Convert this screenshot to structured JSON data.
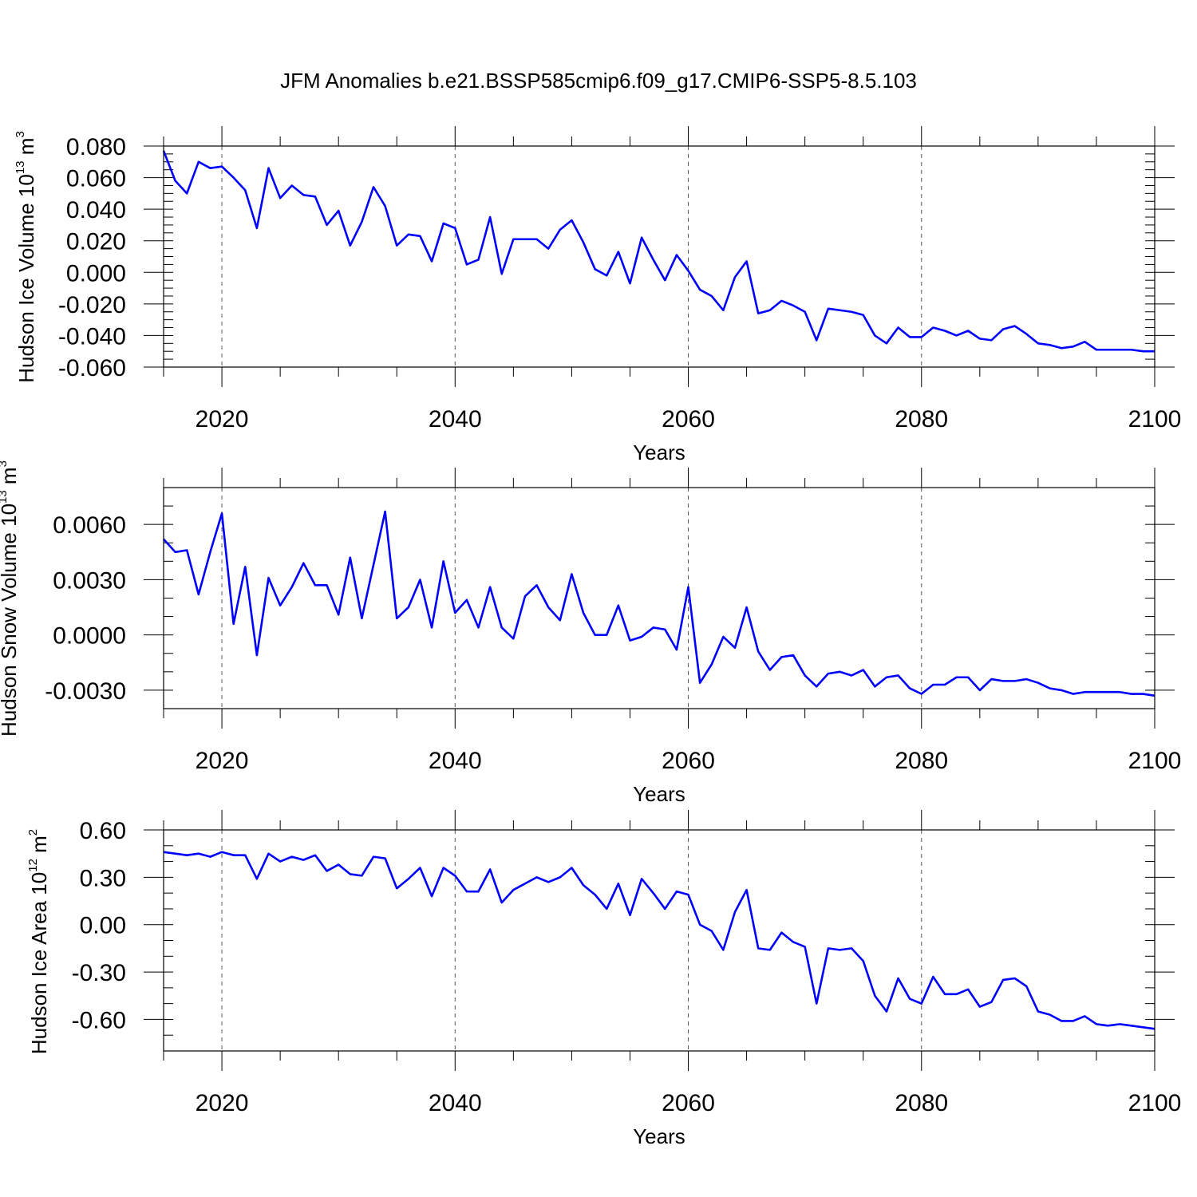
{
  "figure": {
    "title": "JFM Anomalies b.e21.BSSP585cmip6.f09_g17.CMIP6-SSP5-8.5.103",
    "line_color": "#0000ff",
    "axis_color": "#000000"
  },
  "chart_data": [
    {
      "type": "line",
      "title": "JFM Anomalies b.e21.BSSP585cmip6.f09_g17.CMIP6-SSP5-8.5.103",
      "xlabel": "Years",
      "ylabel_main": "Hudson Ice Volume 10",
      "ylabel_exp": "13",
      "ylabel_unit": " m",
      "ylabel_unit_exp": "3",
      "xlim": [
        2015,
        2100
      ],
      "ylim": [
        -0.06,
        0.08
      ],
      "x_ticks": [
        2020,
        2040,
        2060,
        2080,
        2100
      ],
      "x_tick_labels": [
        "2020",
        "2040",
        "2060",
        "2080",
        "2100"
      ],
      "y_ticks": [
        -0.06,
        -0.04,
        -0.02,
        0.0,
        0.02,
        0.04,
        0.06,
        0.08
      ],
      "y_tick_labels": [
        "-0.060",
        "-0.040",
        "-0.020",
        "0.000",
        "0.020",
        "0.040",
        "0.060",
        "0.080"
      ],
      "y_minor_step": 0.005,
      "grid": "vertical dashed at major x ticks",
      "series": [
        {
          "name": "Hudson Ice Volume",
          "x": [
            2015,
            2016,
            2017,
            2018,
            2019,
            2020,
            2021,
            2022,
            2023,
            2024,
            2025,
            2026,
            2027,
            2028,
            2029,
            2030,
            2031,
            2032,
            2033,
            2034,
            2035,
            2036,
            2037,
            2038,
            2039,
            2040,
            2041,
            2042,
            2043,
            2044,
            2045,
            2046,
            2047,
            2048,
            2049,
            2050,
            2051,
            2052,
            2053,
            2054,
            2055,
            2056,
            2057,
            2058,
            2059,
            2060,
            2061,
            2062,
            2063,
            2064,
            2065,
            2066,
            2067,
            2068,
            2069,
            2070,
            2071,
            2072,
            2073,
            2074,
            2075,
            2076,
            2077,
            2078,
            2079,
            2080,
            2081,
            2082,
            2083,
            2084,
            2085,
            2086,
            2087,
            2088,
            2089,
            2090,
            2091,
            2092,
            2093,
            2094,
            2095,
            2096,
            2097,
            2098,
            2099,
            2100
          ],
          "values": [
            0.077,
            0.058,
            0.05,
            0.07,
            0.066,
            0.067,
            0.06,
            0.052,
            0.028,
            0.066,
            0.047,
            0.055,
            0.049,
            0.048,
            0.03,
            0.039,
            0.017,
            0.032,
            0.054,
            0.042,
            0.017,
            0.024,
            0.023,
            0.007,
            0.031,
            0.028,
            0.005,
            0.008,
            0.035,
            -0.001,
            0.021,
            0.021,
            0.021,
            0.015,
            0.027,
            0.033,
            0.019,
            0.002,
            -0.002,
            0.013,
            -0.007,
            0.022,
            0.008,
            -0.005,
            0.011,
            0.001,
            -0.011,
            -0.015,
            -0.024,
            -0.003,
            0.007,
            -0.026,
            -0.024,
            -0.018,
            -0.021,
            -0.025,
            -0.043,
            -0.023,
            -0.024,
            -0.025,
            -0.027,
            -0.04,
            -0.045,
            -0.035,
            -0.041,
            -0.041,
            -0.035,
            -0.037,
            -0.04,
            -0.037,
            -0.042,
            -0.043,
            -0.036,
            -0.034,
            -0.039,
            -0.045,
            -0.046,
            -0.048,
            -0.047,
            -0.044,
            -0.049,
            -0.049,
            -0.049,
            -0.049,
            -0.05,
            -0.05
          ]
        }
      ]
    },
    {
      "type": "line",
      "xlabel": "Years",
      "ylabel_main": "Hudson Snow Volume 10",
      "ylabel_exp": "13",
      "ylabel_unit": " m",
      "ylabel_unit_exp": "3",
      "xlim": [
        2015,
        2100
      ],
      "ylim": [
        -0.004,
        0.008
      ],
      "x_ticks": [
        2020,
        2040,
        2060,
        2080,
        2100
      ],
      "x_tick_labels": [
        "2020",
        "2040",
        "2060",
        "2080",
        "2100"
      ],
      "y_ticks": [
        -0.003,
        0.0,
        0.003,
        0.006
      ],
      "y_tick_labels": [
        "-0.0030",
        "0.0000",
        "0.0030",
        "0.0060"
      ],
      "y_minor_step": 0.001,
      "grid": "vertical dashed at major x ticks",
      "series": [
        {
          "name": "Hudson Snow Volume",
          "x": [
            2015,
            2016,
            2017,
            2018,
            2019,
            2020,
            2021,
            2022,
            2023,
            2024,
            2025,
            2026,
            2027,
            2028,
            2029,
            2030,
            2031,
            2032,
            2033,
            2034,
            2035,
            2036,
            2037,
            2038,
            2039,
            2040,
            2041,
            2042,
            2043,
            2044,
            2045,
            2046,
            2047,
            2048,
            2049,
            2050,
            2051,
            2052,
            2053,
            2054,
            2055,
            2056,
            2057,
            2058,
            2059,
            2060,
            2061,
            2062,
            2063,
            2064,
            2065,
            2066,
            2067,
            2068,
            2069,
            2070,
            2071,
            2072,
            2073,
            2074,
            2075,
            2076,
            2077,
            2078,
            2079,
            2080,
            2081,
            2082,
            2083,
            2084,
            2085,
            2086,
            2087,
            2088,
            2089,
            2090,
            2091,
            2092,
            2093,
            2094,
            2095,
            2096,
            2097,
            2098,
            2099,
            2100
          ],
          "values": [
            0.0052,
            0.0045,
            0.0046,
            0.0022,
            0.0045,
            0.0066,
            0.0006,
            0.0037,
            -0.0011,
            0.0031,
            0.0016,
            0.0026,
            0.0039,
            0.0027,
            0.0027,
            0.0011,
            0.0042,
            0.0009,
            0.0038,
            0.0067,
            0.0009,
            0.0015,
            0.003,
            0.0004,
            0.004,
            0.0012,
            0.0019,
            0.0004,
            0.0026,
            0.0004,
            -0.0002,
            0.0021,
            0.0027,
            0.0015,
            0.0008,
            0.0033,
            0.0012,
            0.0,
            0.0,
            0.0016,
            -0.0003,
            -0.0001,
            0.0004,
            0.0003,
            -0.0008,
            0.0026,
            -0.0026,
            -0.0016,
            -0.0001,
            -0.0007,
            0.0015,
            -0.0009,
            -0.0019,
            -0.0012,
            -0.0011,
            -0.0022,
            -0.0028,
            -0.0021,
            -0.002,
            -0.0022,
            -0.0019,
            -0.0028,
            -0.0023,
            -0.0022,
            -0.0029,
            -0.0032,
            -0.0027,
            -0.0027,
            -0.0023,
            -0.0023,
            -0.003,
            -0.0024,
            -0.0025,
            -0.0025,
            -0.0024,
            -0.0026,
            -0.0029,
            -0.003,
            -0.0032,
            -0.0031,
            -0.0031,
            -0.0031,
            -0.0031,
            -0.0032,
            -0.0032,
            -0.0033
          ]
        }
      ]
    },
    {
      "type": "line",
      "xlabel": "Years",
      "ylabel_main": "Hudson Ice Area 10",
      "ylabel_exp": "12",
      "ylabel_unit": " m",
      "ylabel_unit_exp": "2",
      "xlim": [
        2015,
        2100
      ],
      "ylim": [
        -0.8,
        0.6
      ],
      "x_ticks": [
        2020,
        2040,
        2060,
        2080,
        2100
      ],
      "x_tick_labels": [
        "2020",
        "2040",
        "2060",
        "2080",
        "2100"
      ],
      "y_ticks": [
        -0.6,
        -0.3,
        0.0,
        0.3,
        0.6
      ],
      "y_tick_labels": [
        "-0.60",
        "-0.30",
        "0.00",
        "0.30",
        "0.60"
      ],
      "y_minor_step": 0.1,
      "grid": "vertical dashed at major x ticks",
      "series": [
        {
          "name": "Hudson Ice Area",
          "x": [
            2015,
            2016,
            2017,
            2018,
            2019,
            2020,
            2021,
            2022,
            2023,
            2024,
            2025,
            2026,
            2027,
            2028,
            2029,
            2030,
            2031,
            2032,
            2033,
            2034,
            2035,
            2036,
            2037,
            2038,
            2039,
            2040,
            2041,
            2042,
            2043,
            2044,
            2045,
            2046,
            2047,
            2048,
            2049,
            2050,
            2051,
            2052,
            2053,
            2054,
            2055,
            2056,
            2057,
            2058,
            2059,
            2060,
            2061,
            2062,
            2063,
            2064,
            2065,
            2066,
            2067,
            2068,
            2069,
            2070,
            2071,
            2072,
            2073,
            2074,
            2075,
            2076,
            2077,
            2078,
            2079,
            2080,
            2081,
            2082,
            2083,
            2084,
            2085,
            2086,
            2087,
            2088,
            2089,
            2090,
            2091,
            2092,
            2093,
            2094,
            2095,
            2096,
            2097,
            2098,
            2099,
            2100
          ],
          "values": [
            0.46,
            0.45,
            0.44,
            0.45,
            0.43,
            0.46,
            0.44,
            0.44,
            0.29,
            0.45,
            0.4,
            0.43,
            0.41,
            0.44,
            0.34,
            0.38,
            0.32,
            0.31,
            0.43,
            0.42,
            0.23,
            0.29,
            0.36,
            0.18,
            0.36,
            0.31,
            0.21,
            0.21,
            0.35,
            0.14,
            0.22,
            0.26,
            0.3,
            0.27,
            0.3,
            0.36,
            0.25,
            0.19,
            0.1,
            0.26,
            0.06,
            0.29,
            0.2,
            0.1,
            0.21,
            0.19,
            0.0,
            -0.04,
            -0.16,
            0.08,
            0.22,
            -0.15,
            -0.16,
            -0.05,
            -0.11,
            -0.14,
            -0.5,
            -0.15,
            -0.16,
            -0.15,
            -0.23,
            -0.45,
            -0.55,
            -0.34,
            -0.47,
            -0.5,
            -0.33,
            -0.44,
            -0.44,
            -0.41,
            -0.52,
            -0.49,
            -0.35,
            -0.34,
            -0.39,
            -0.55,
            -0.57,
            -0.61,
            -0.61,
            -0.58,
            -0.63,
            -0.64,
            -0.63,
            -0.64,
            -0.65,
            -0.66
          ]
        }
      ]
    }
  ]
}
